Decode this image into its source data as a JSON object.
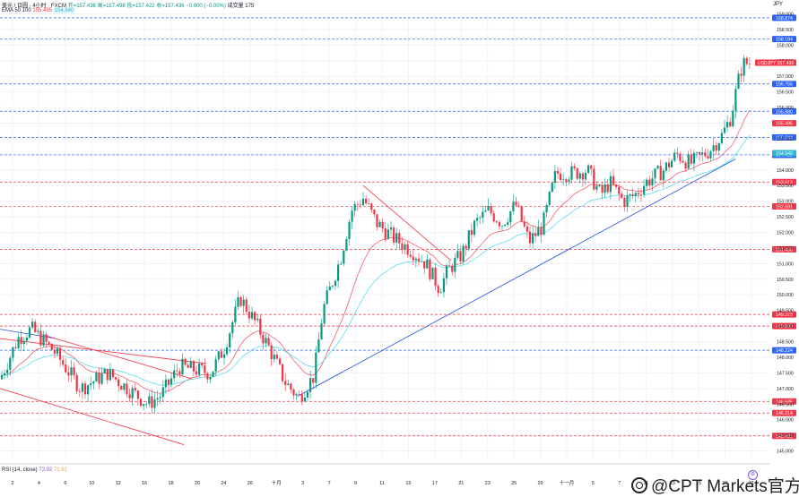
{
  "header": {
    "line1_prefix": "美元 / 日圆 · 4小时 · FXCM",
    "open": "开=157.436",
    "high": "高=157.498",
    "low": "低=157.422",
    "close": "收=157.436",
    "change": "−0.000 (−0.00%)",
    "volume": "成交量 175",
    "line2_label": "EMA 50 100",
    "ema50": "155.495",
    "ema100": "154.540"
  },
  "currency": "JPY",
  "rsi_label": {
    "name": "RSI (14, close)",
    "v1": "72.02",
    "v2": "71.61"
  },
  "watermark": "@CPT Markets官方",
  "chart_data": {
    "type": "line",
    "title": "USD/JPY 4H",
    "ylim": [
      144.7,
      159.1
    ],
    "y_ticks": [
      "159.000",
      "158.500",
      "158.000",
      "157.500",
      "157.000",
      "156.500",
      "156.000",
      "155.500",
      "155.000",
      "154.500",
      "154.000",
      "153.500",
      "153.000",
      "152.500",
      "152.000",
      "151.500",
      "151.000",
      "150.500",
      "150.000",
      "149.500",
      "149.000",
      "148.500",
      "148.000",
      "147.500",
      "147.000",
      "146.500",
      "146.000",
      "145.500",
      "145.000"
    ],
    "x_ticks": [
      "2",
      "4",
      "6",
      "10",
      "12",
      "16",
      "18",
      "20",
      "24",
      "26",
      "十月",
      "3",
      "7",
      "9",
      "11",
      "15",
      "17",
      "21",
      "23",
      "25",
      "29",
      "十一月",
      "5",
      "7",
      "11",
      "13",
      "15",
      "19",
      "21"
    ],
    "level_lines": [
      {
        "price": 158.874,
        "label": "158.874",
        "style": "blue-dashed"
      },
      {
        "price": 158.194,
        "label": "158.194",
        "style": "blue-dashed"
      },
      {
        "price": 156.755,
        "label": "156.755",
        "style": "blue-dashed"
      },
      {
        "price": 155.88,
        "label": "155.880",
        "style": "blue-dashed"
      },
      {
        "price": 155.044,
        "label": "155.044",
        "style": "blue-dashed"
      },
      {
        "price": 154.483,
        "label": "154.483",
        "style": "blue-dashed"
      },
      {
        "price": 153.613,
        "label": "153.613",
        "style": "red-dashed"
      },
      {
        "price": 152.831,
        "label": "152.831",
        "style": "red-dashed"
      },
      {
        "price": 151.458,
        "label": "151.458",
        "style": "red-dashed"
      },
      {
        "price": 149.373,
        "label": "149.373",
        "style": "red-dashed"
      },
      {
        "price": 149.0,
        "label": "149.000",
        "style": "red-dashed"
      },
      {
        "price": 148.224,
        "label": "148.224",
        "style": "blue-dashed"
      },
      {
        "price": 146.585,
        "label": "146.585",
        "style": "red-dashed"
      },
      {
        "price": 146.214,
        "label": "146.214",
        "style": "red-dashed"
      },
      {
        "price": 145.481,
        "label": "145.481",
        "style": "red-dashed"
      }
    ],
    "price_badges": [
      {
        "price": 157.436,
        "label": "USDJPY 157.436",
        "color": "#f23645"
      },
      {
        "price": 155.495,
        "label": "155.495",
        "color": "#f23645"
      },
      {
        "price": 154.54,
        "label": "154.540",
        "color": "#2fb6d6"
      }
    ],
    "series": [
      {
        "name": "USDJPY",
        "color": "#089981",
        "key_points": [
          [
            0,
            147.3
          ],
          [
            20,
            148.6
          ],
          [
            35,
            148.9
          ],
          [
            60,
            148.2
          ],
          [
            90,
            147.0
          ],
          [
            120,
            147.5
          ],
          [
            165,
            146.5
          ],
          [
            180,
            146.8
          ],
          [
            200,
            147.7
          ],
          [
            235,
            147.5
          ],
          [
            250,
            148.3
          ],
          [
            268,
            149.9
          ],
          [
            285,
            149.1
          ],
          [
            300,
            148.3
          ],
          [
            318,
            147.2
          ],
          [
            333,
            146.7
          ],
          [
            350,
            147.4
          ],
          [
            360,
            149.5
          ],
          [
            380,
            151.2
          ],
          [
            392,
            152.7
          ],
          [
            405,
            153.1
          ],
          [
            420,
            152.3
          ],
          [
            440,
            151.8
          ],
          [
            460,
            151.4
          ],
          [
            475,
            151.0
          ],
          [
            490,
            150.2
          ],
          [
            500,
            150.8
          ],
          [
            515,
            151.3
          ],
          [
            530,
            152.3
          ],
          [
            545,
            152.7
          ],
          [
            560,
            152.3
          ],
          [
            575,
            152.9
          ],
          [
            590,
            151.7
          ],
          [
            605,
            152.2
          ],
          [
            620,
            153.9
          ],
          [
            640,
            153.9
          ],
          [
            655,
            154.0
          ],
          [
            670,
            153.2
          ],
          [
            680,
            153.6
          ],
          [
            695,
            153.0
          ],
          [
            708,
            153.2
          ],
          [
            720,
            153.6
          ],
          [
            740,
            154.0
          ],
          [
            755,
            154.5
          ],
          [
            770,
            154.2
          ],
          [
            790,
            154.6
          ],
          [
            805,
            155.1
          ],
          [
            815,
            155.7
          ],
          [
            822,
            156.7
          ],
          [
            828,
            157.4
          ],
          [
            838,
            157.436
          ]
        ]
      },
      {
        "name": "EMA 50",
        "color": "#f23645"
      },
      {
        "name": "EMA 100",
        "color": "#2fb6d6"
      }
    ],
    "trendlines": [
      {
        "color": "#1f4fe0",
        "from": [
          332,
          146.75
        ],
        "to": [
          820,
          154.35
        ]
      },
      {
        "color": "#1f4fe0",
        "from": [
          0,
          148.9
        ],
        "to": [
          62,
          148.6
        ]
      },
      {
        "color": "#f23645",
        "from": [
          0,
          148.6
        ],
        "to": [
          230,
          147.8
        ]
      },
      {
        "color": "#f23645",
        "from": [
          0,
          147.0
        ],
        "to": [
          205,
          145.2
        ]
      },
      {
        "color": "#f23645",
        "from": [
          50,
          148.7
        ],
        "to": [
          215,
          147.3
        ]
      },
      {
        "color": "#f23645",
        "from": [
          405,
          153.5
        ],
        "to": [
          503,
          151.1
        ]
      }
    ],
    "rsi": {
      "v1": 72.02,
      "v2": 71.61
    }
  }
}
